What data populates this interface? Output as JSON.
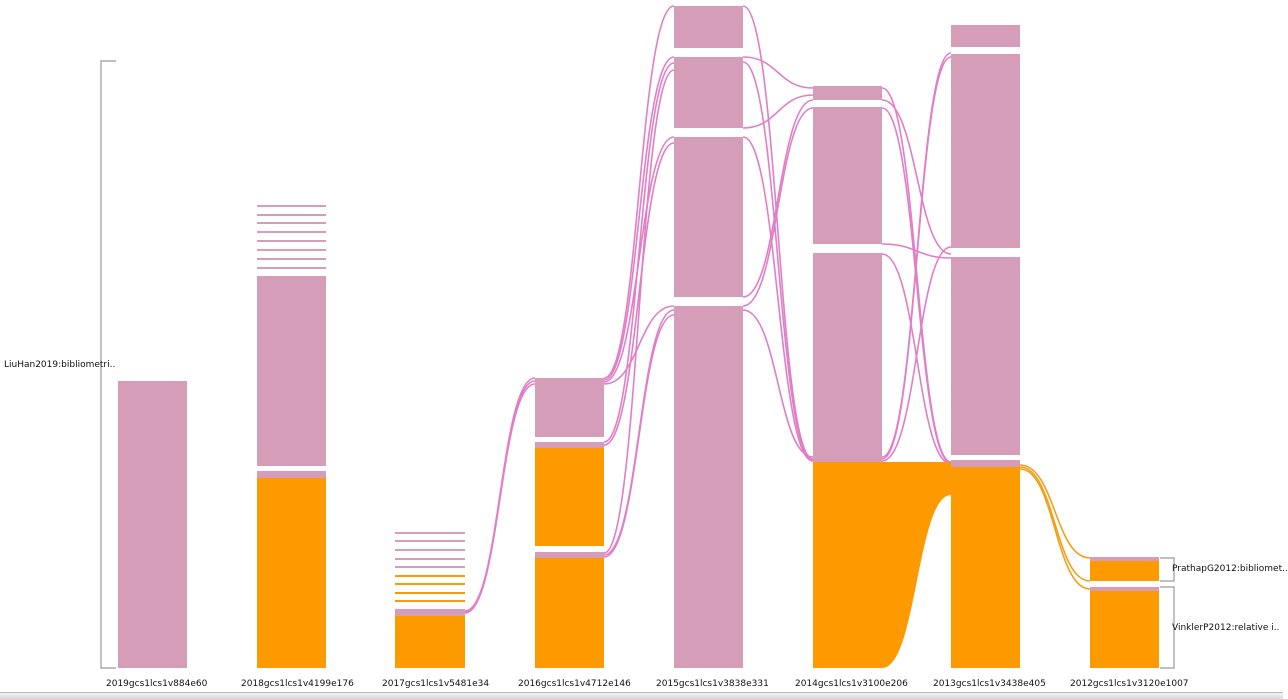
{
  "colors": {
    "pink": "#d59db7",
    "pink_link": "#e07ec8",
    "orange": "#fd9a00",
    "orange_link": "#f2a01c",
    "bracket": "#999999",
    "background": "#ffffff"
  },
  "columns": [
    {
      "label": "2019gcs1lcs1v884e60"
    },
    {
      "label": "2018gcs1lcs1v4199e176"
    },
    {
      "label": "2017gcs1lcs1v5481e34"
    },
    {
      "label": "2016gcs1lcs1v4712e146"
    },
    {
      "label": "2015gcs1lcs1v3838e331"
    },
    {
      "label": "2014gcs1lcs1v3100e206"
    },
    {
      "label": "2013gcs1lcs1v3438e405"
    },
    {
      "label": "2012gcs1lcs1v3120e1007"
    }
  ],
  "annotations": {
    "left_group": "LiuHan2019:bibliometri..",
    "right_group_top": "PrathapG2012:bibliomet..",
    "right_group_bottom": "VinklerP2012:relative i.."
  }
}
